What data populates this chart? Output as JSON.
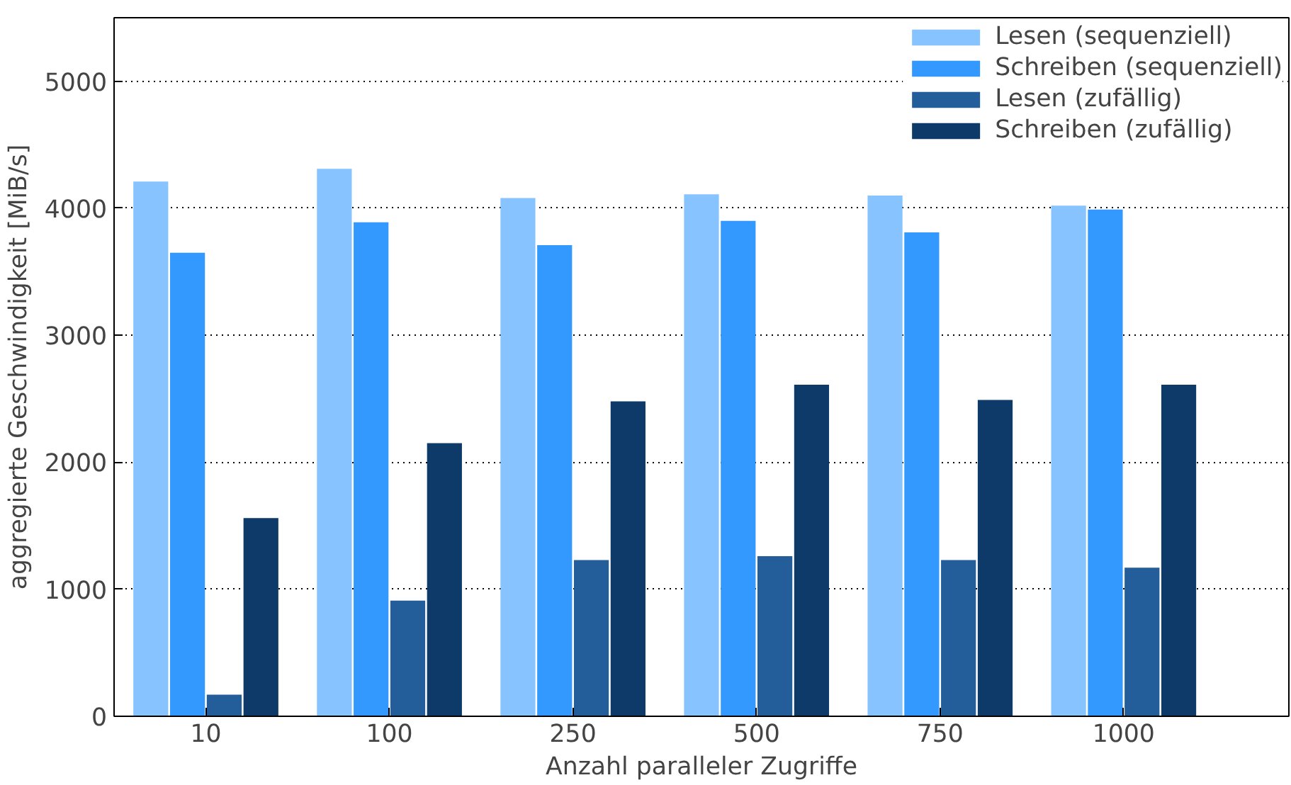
{
  "chart_data": {
    "type": "bar",
    "xlabel": "Anzahl paralleler Zugriffe",
    "ylabel": "aggregierte Geschwindigkeit [MiB/s]",
    "categories": [
      "10",
      "100",
      "250",
      "500",
      "750",
      "1000"
    ],
    "series": [
      {
        "name": "Lesen (sequenziell)",
        "color": "#87c4ff",
        "values": [
          4210,
          4310,
          4080,
          4110,
          4100,
          4020
        ]
      },
      {
        "name": "Schreiben (sequenziell)",
        "color": "#3399ff",
        "values": [
          3650,
          3890,
          3710,
          3900,
          3810,
          3990
        ]
      },
      {
        "name": "Lesen (zufällig)",
        "color": "#235e9a",
        "values": [
          170,
          910,
          1230,
          1260,
          1230,
          1170
        ]
      },
      {
        "name": "Schreiben (zufällig)",
        "color": "#0d3a69",
        "values": [
          1560,
          2150,
          2480,
          2610,
          2490,
          2610
        ]
      }
    ],
    "ylim": [
      0,
      5500
    ],
    "yticks": [
      0,
      1000,
      2000,
      3000,
      4000,
      5000
    ],
    "grid": "y",
    "legend": "top right"
  }
}
